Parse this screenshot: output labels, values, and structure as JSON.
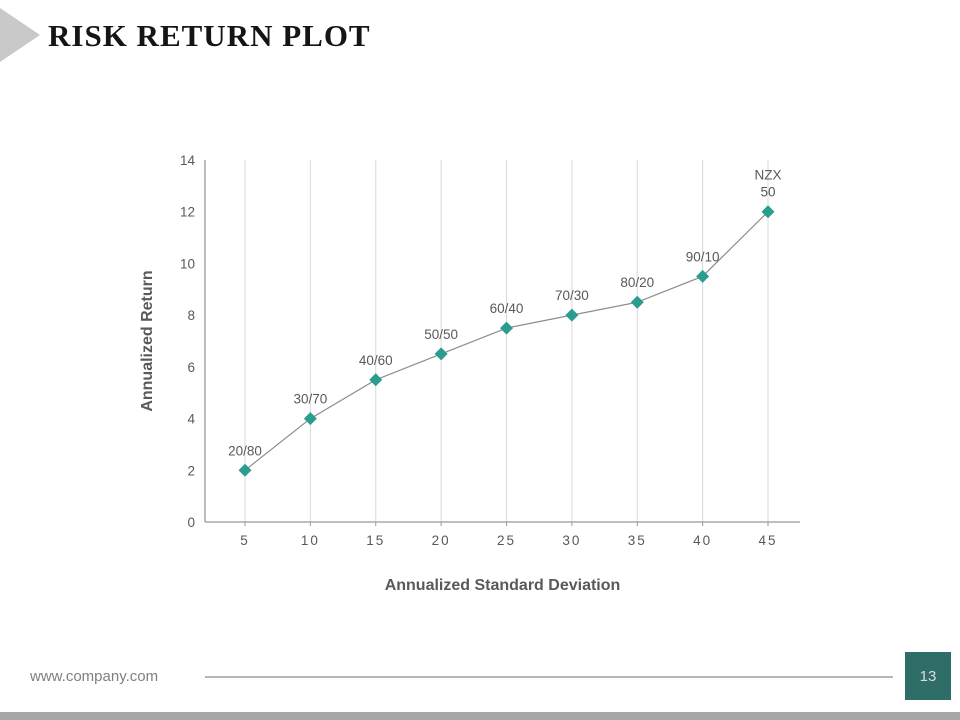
{
  "slide": {
    "title": "RISK RETURN PLOT",
    "footer": {
      "website": "www.company.com",
      "page_number": "13"
    }
  },
  "chart_data": {
    "type": "scatter",
    "x": [
      5,
      10,
      15,
      20,
      25,
      30,
      35,
      40,
      45
    ],
    "y": [
      2,
      4,
      5.5,
      6.5,
      7.5,
      8,
      8.5,
      9.5,
      12
    ],
    "point_labels": [
      "20/80",
      "30/70",
      "40/60",
      "50/50",
      "60/40",
      "70/30",
      "80/20",
      "90/10",
      "NZX 50"
    ],
    "x_ticks": [
      5,
      10,
      15,
      20,
      25,
      30,
      35,
      40,
      45
    ],
    "y_ticks": [
      0,
      2,
      4,
      6,
      8,
      10,
      12,
      14
    ],
    "ylim": [
      0,
      14
    ],
    "xlabel": "Annualized Standard Deviation",
    "ylabel": "Annualized Return",
    "grid": "vertical",
    "legend": "none",
    "colors": {
      "marker": "#2a9d8f",
      "line": "#8c8c8c",
      "gridline": "#d9d9d9",
      "axis": "#999999",
      "text": "#595959",
      "page_box_bg": "#2f6d68",
      "page_box_text": "#dcdcdc"
    }
  }
}
